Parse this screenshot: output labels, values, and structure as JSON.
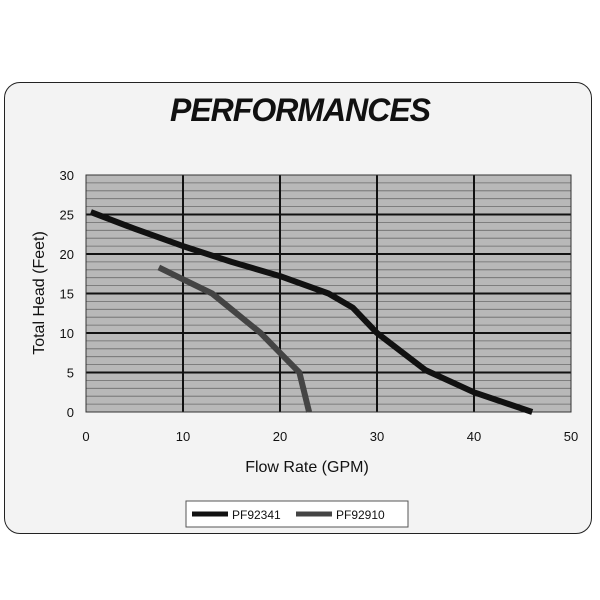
{
  "chart_data": {
    "type": "line",
    "title": "PERFORMANCES",
    "xlabel": "Flow Rate (GPM)",
    "ylabel": "Total Head (Feet)",
    "xlim": [
      0,
      50
    ],
    "ylim": [
      0,
      30
    ],
    "x_ticks": [
      "0",
      "10",
      "20",
      "30",
      "40",
      "50"
    ],
    "y_ticks": [
      "0",
      "5",
      "10",
      "15",
      "20",
      "25",
      "30"
    ],
    "grid": true,
    "legend_position": "bottom",
    "series": [
      {
        "name": "PF92341",
        "color": "#111111",
        "points": [
          [
            0.5,
            25.3
          ],
          [
            5,
            23.2
          ],
          [
            10,
            21.0
          ],
          [
            15,
            19.0
          ],
          [
            20,
            17.2
          ],
          [
            25,
            15.0
          ],
          [
            27.5,
            13.2
          ],
          [
            30,
            10.0
          ],
          [
            35,
            5.3
          ],
          [
            40,
            2.5
          ],
          [
            46,
            0
          ]
        ]
      },
      {
        "name": "PF92910",
        "color": "#444444",
        "points": [
          [
            7.5,
            18.3
          ],
          [
            10,
            16.8
          ],
          [
            13,
            15.0
          ],
          [
            15,
            13.0
          ],
          [
            18,
            10.0
          ],
          [
            20,
            7.5
          ],
          [
            22,
            5.0
          ],
          [
            23,
            0
          ]
        ]
      }
    ]
  }
}
